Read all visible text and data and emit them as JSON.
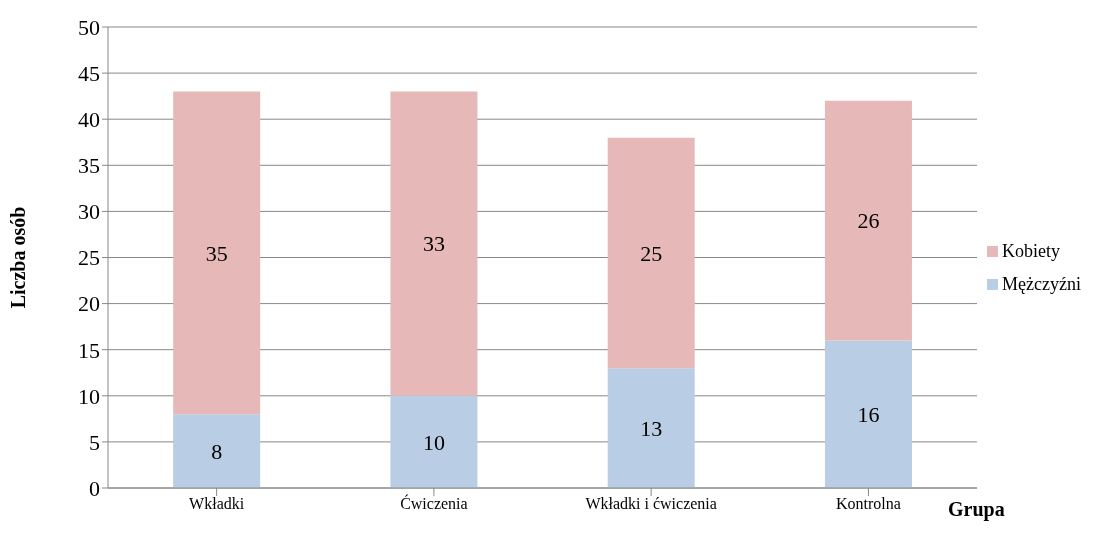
{
  "chart_data": {
    "type": "bar",
    "stacked": true,
    "xlabel": "Grupa",
    "ylabel": "Liczba osób",
    "categories": [
      "Wkładki",
      "Ćwiczenia",
      "Wkładki i ćwiczenia",
      "Kontrolna"
    ],
    "series": [
      {
        "name": "Mężczyźni",
        "color": "#b9cde4",
        "values": [
          8,
          10,
          13,
          16
        ]
      },
      {
        "name": "Kobiety",
        "color": "#e6b9b8",
        "values": [
          35,
          33,
          25,
          26
        ]
      }
    ],
    "ylim": [
      0,
      50
    ],
    "yticks": [
      0,
      5,
      10,
      15,
      20,
      25,
      30,
      35,
      40,
      45,
      50
    ],
    "grid": "y",
    "legend": "right",
    "data_labels": true
  }
}
